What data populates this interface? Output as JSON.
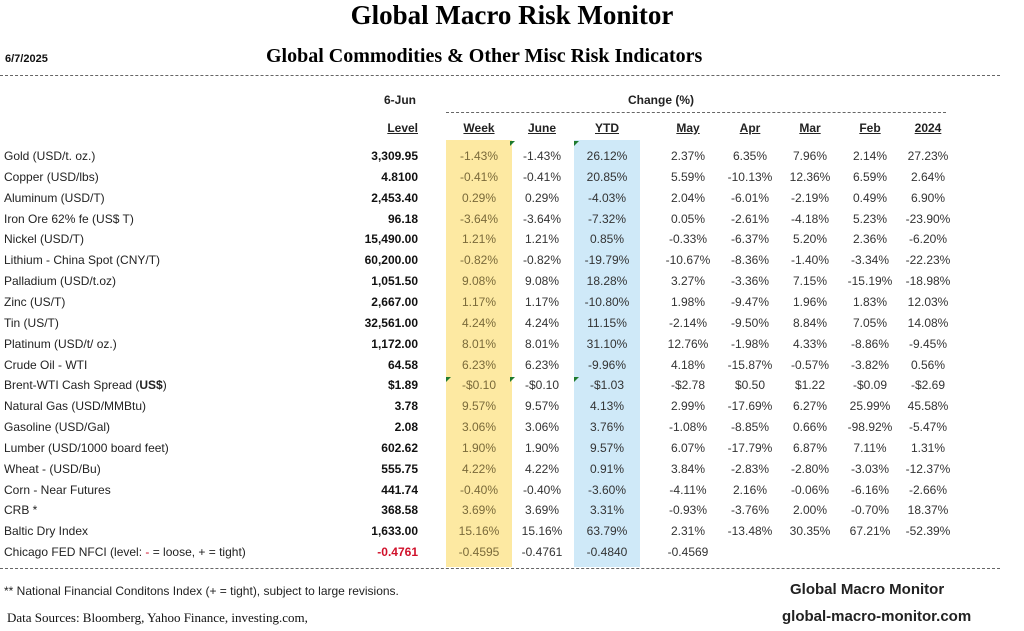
{
  "header": {
    "title": "Global Macro Risk Monitor",
    "date": "6/7/2025",
    "subtitle": "Global Commodities & Other Misc Risk Indicators"
  },
  "table": {
    "level_date": "6-Jun",
    "change_label": "Change (%)",
    "columns": [
      "Level",
      "Week",
      "June",
      "YTD",
      "May",
      "Apr",
      "Mar",
      "Feb",
      "2024"
    ],
    "highlight_colors": {
      "week": "#fde9a2",
      "ytd": "#cfe9f8",
      "negative_level": "#d0102a"
    },
    "rows": [
      {
        "name": "Gold (USD/t. oz.)",
        "values": [
          "3,309.95",
          "-1.43%",
          "-1.43%",
          "26.12%",
          "2.37%",
          "6.35%",
          "7.96%",
          "2.14%",
          "27.23%"
        ]
      },
      {
        "name": "Copper (USD/lbs)",
        "values": [
          "4.8100",
          "-0.41%",
          "-0.41%",
          "20.85%",
          "5.59%",
          "-10.13%",
          "12.36%",
          "6.59%",
          "2.64%"
        ]
      },
      {
        "name": "Aluminum (USD/T)",
        "values": [
          "2,453.40",
          "0.29%",
          "0.29%",
          "-4.03%",
          "2.04%",
          "-6.01%",
          "-2.19%",
          "0.49%",
          "6.90%"
        ]
      },
      {
        "name": "Iron Ore 62% fe (US$ T)",
        "values": [
          "96.18",
          "-3.64%",
          "-3.64%",
          "-7.32%",
          "0.05%",
          "-2.61%",
          "-4.18%",
          "5.23%",
          "-23.90%"
        ]
      },
      {
        "name": "Nickel (USD/T)",
        "values": [
          "15,490.00",
          "1.21%",
          "1.21%",
          "0.85%",
          "-0.33%",
          "-6.37%",
          "5.20%",
          "2.36%",
          "-6.20%"
        ]
      },
      {
        "name": "Lithium - China Spot (CNY/T)",
        "values": [
          "60,200.00",
          "-0.82%",
          "-0.82%",
          "-19.79%",
          "-10.67%",
          "-8.36%",
          "-1.40%",
          "-3.34%",
          "-22.23%"
        ]
      },
      {
        "name": "Palladium (USD/t.oz)",
        "values": [
          "1,051.50",
          "9.08%",
          "9.08%",
          "18.28%",
          "3.27%",
          "-3.36%",
          "7.15%",
          "-15.19%",
          "-18.98%"
        ]
      },
      {
        "name": "Zinc (US/T)",
        "values": [
          "2,667.00",
          "1.17%",
          "1.17%",
          "-10.80%",
          "1.98%",
          "-9.47%",
          "1.96%",
          "1.83%",
          "12.03%"
        ]
      },
      {
        "name": "Tin (US/T)",
        "values": [
          "32,561.00",
          "4.24%",
          "4.24%",
          "11.15%",
          "-2.14%",
          "-9.50%",
          "8.84%",
          "7.05%",
          "14.08%"
        ]
      },
      {
        "name": "Platinum (USD/t/ oz.)",
        "values": [
          "1,172.00",
          "8.01%",
          "8.01%",
          "31.10%",
          "12.76%",
          "-1.98%",
          "4.33%",
          "-8.86%",
          "-9.45%"
        ]
      },
      {
        "name": "Crude Oil - WTI",
        "values": [
          "64.58",
          "6.23%",
          "6.23%",
          "-9.96%",
          "4.18%",
          "-15.87%",
          "-0.57%",
          "-3.82%",
          "0.56%"
        ]
      },
      {
        "name_parts": [
          {
            "text": "Brent-WTI Cash Spread ("
          },
          {
            "text": "US$",
            "bold": true
          },
          {
            "text": ")"
          }
        ],
        "values": [
          "$1.89",
          "-$0.10",
          "-$0.10",
          "-$1.03",
          "-$2.78",
          "$0.50",
          "$1.22",
          "-$0.09",
          "-$2.69"
        ]
      },
      {
        "name": "Natural Gas  (USD/MMBtu)",
        "values": [
          "3.78",
          "9.57%",
          "9.57%",
          "4.13%",
          "2.99%",
          "-17.69%",
          "6.27%",
          "25.99%",
          "45.58%"
        ]
      },
      {
        "name": "Gasoline (USD/Gal)",
        "values": [
          "2.08",
          "3.06%",
          "3.06%",
          "3.76%",
          "-1.08%",
          "-8.85%",
          "0.66%",
          "-98.92%",
          "-5.47%"
        ]
      },
      {
        "name": "Lumber (USD/1000 board feet)",
        "values": [
          "602.62",
          "1.90%",
          "1.90%",
          "9.57%",
          "6.07%",
          "-17.79%",
          "6.87%",
          "7.11%",
          "1.31%"
        ]
      },
      {
        "name": "Wheat - (USD/Bu)",
        "values": [
          "555.75",
          "4.22%",
          "4.22%",
          "0.91%",
          "3.84%",
          "-2.83%",
          "-2.80%",
          "-3.03%",
          "-12.37%"
        ]
      },
      {
        "name": "Corn - Near Futures",
        "values": [
          "441.74",
          "-0.40%",
          "-0.40%",
          "-3.60%",
          "-4.11%",
          "2.16%",
          "-0.06%",
          "-6.16%",
          "-2.66%"
        ]
      },
      {
        "name": "CRB *",
        "values": [
          "368.58",
          "3.69%",
          "3.69%",
          "3.31%",
          "-0.93%",
          "-3.76%",
          "2.00%",
          "-0.70%",
          "18.37%"
        ]
      },
      {
        "name": "Baltic Dry Index",
        "values": [
          "1,633.00",
          "15.16%",
          "15.16%",
          "63.79%",
          "2.31%",
          "-13.48%",
          "30.35%",
          "67.21%",
          "-52.39%"
        ]
      },
      {
        "name_parts": [
          {
            "text": "Chicago FED NFCI (level:  "
          },
          {
            "text": "-",
            "red": true
          },
          {
            "text": " = loose,  + = tight)"
          }
        ],
        "level_red": true,
        "values": [
          "-0.4761",
          "-0.4595",
          "-0.4761",
          "-0.4840",
          "-0.4569",
          "",
          "",
          "",
          ""
        ]
      }
    ]
  },
  "footer": {
    "footnote": "** National Financial Conditons Index (+ =  tight), subject to large revisions.",
    "sources": "Data Sources:  Bloomberg,  Yahoo Finance, investing.com,",
    "brand": "Global Macro Monitor",
    "url": "global-macro-monitor.com"
  }
}
